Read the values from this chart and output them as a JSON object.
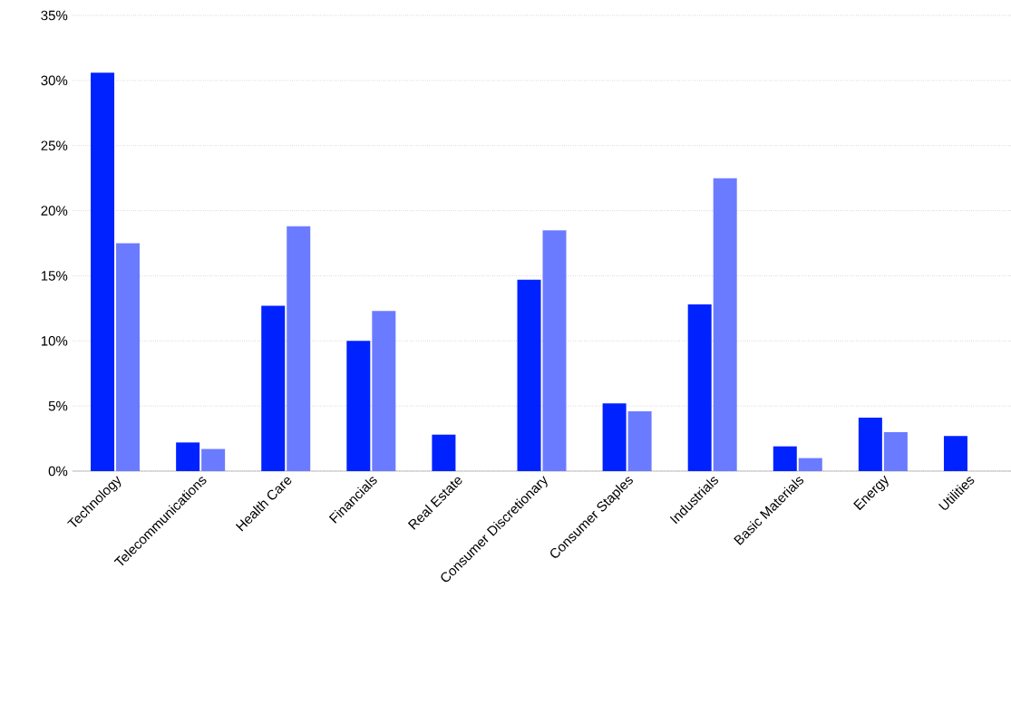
{
  "chart_data": {
    "type": "bar",
    "categories": [
      "Technology",
      "Telecommunications",
      "Health Care",
      "Financials",
      "Real Estate",
      "Consumer Discretionary",
      "Consumer Staples",
      "Industrials",
      "Basic Materials",
      "Energy",
      "Utilities"
    ],
    "series": [
      {
        "color": "#0022ff",
        "values": [
          30.6,
          2.2,
          12.7,
          10.0,
          2.8,
          14.7,
          5.2,
          12.8,
          1.9,
          4.1,
          2.7
        ]
      },
      {
        "color": "#6b7bff",
        "values": [
          17.5,
          1.7,
          18.8,
          12.3,
          null,
          18.5,
          4.6,
          22.5,
          1.0,
          3.0,
          null
        ]
      }
    ],
    "ylim": [
      0,
      35
    ],
    "yticks": [
      {
        "value": 0,
        "label": "0%"
      },
      {
        "value": 5,
        "label": "5%"
      },
      {
        "value": 10,
        "label": "10%"
      },
      {
        "value": 15,
        "label": "15%"
      },
      {
        "value": 20,
        "label": "20%"
      },
      {
        "value": 25,
        "label": "25%"
      },
      {
        "value": 30,
        "label": "30%"
      },
      {
        "value": 35,
        "label": "35%"
      }
    ],
    "grid": "y"
  }
}
